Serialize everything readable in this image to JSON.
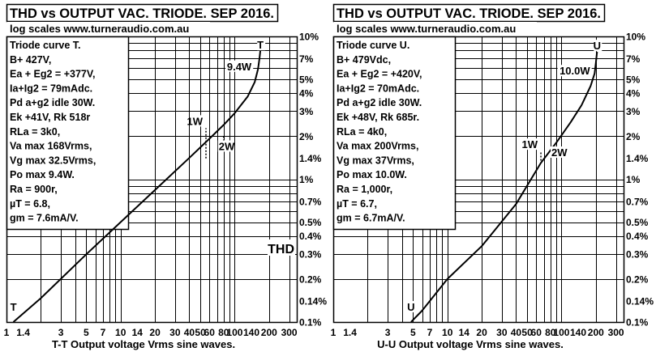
{
  "chart_data": [
    {
      "type": "line",
      "title": "THD vs OUTPUT VAC. TRIODE. SEP 2016.",
      "subtitle": "log scales  www.turneraudio.com.au",
      "xlabel": "T-T  Output voltage Vrms sine waves.",
      "ylabel_inline": "THD",
      "xscale": "log",
      "yscale": "log",
      "xlim": [
        1,
        350
      ],
      "ylim": [
        0.1,
        10
      ],
      "x_tick_labels": [
        {
          "v": 1,
          "label": "1"
        },
        {
          "v": 1.4,
          "label": "1.4"
        },
        {
          "v": 3,
          "label": "3"
        },
        {
          "v": 5,
          "label": "5"
        },
        {
          "v": 7,
          "label": "7"
        },
        {
          "v": 10,
          "label": "10"
        },
        {
          "v": 14,
          "label": "14"
        },
        {
          "v": 20,
          "label": "20"
        },
        {
          "v": 30,
          "label": "30"
        },
        {
          "v": 40,
          "label": "40"
        },
        {
          "v": 50,
          "label": "50"
        },
        {
          "v": 60,
          "label": "60"
        },
        {
          "v": 80,
          "label": "80"
        },
        {
          "v": 100,
          "label": "100"
        },
        {
          "v": 140,
          "label": "140"
        },
        {
          "v": 200,
          "label": "200"
        },
        {
          "v": 300,
          "label": "300"
        }
      ],
      "y_tick_labels": [
        {
          "v": 10,
          "label": "10%"
        },
        {
          "v": 7,
          "label": "7%"
        },
        {
          "v": 5,
          "label": "5%"
        },
        {
          "v": 4,
          "label": "4%"
        },
        {
          "v": 3,
          "label": "3%"
        },
        {
          "v": 2,
          "label": "2%"
        },
        {
          "v": 1.4,
          "label": "1.4%"
        },
        {
          "v": 1,
          "label": "1%"
        },
        {
          "v": 0.7,
          "label": "0.7%"
        },
        {
          "v": 0.5,
          "label": "0.5%"
        },
        {
          "v": 0.4,
          "label": "0.4%"
        },
        {
          "v": 0.3,
          "label": "0.3%"
        },
        {
          "v": 0.2,
          "label": "0.2%"
        },
        {
          "v": 0.14,
          "label": "0.14%"
        },
        {
          "v": 0.1,
          "label": "0.1%"
        }
      ],
      "series": [
        {
          "name": "T",
          "x": [
            1.15,
            2,
            5,
            10,
            20,
            40,
            60,
            80,
            100,
            130,
            150,
            160,
            165,
            168
          ],
          "y": [
            0.1,
            0.147,
            0.298,
            0.5,
            0.84,
            1.41,
            1.92,
            2.4,
            2.9,
            3.8,
            4.8,
            5.9,
            7.0,
            8.0
          ]
        }
      ],
      "annotations": [
        {
          "text": "1W",
          "x": 56,
          "y": 1.4,
          "label_y": 2.4
        },
        {
          "text": "2W",
          "x": 80,
          "y": 2.0,
          "label_y": 1.6
        },
        {
          "text": "9.4W",
          "x": 150,
          "y": 5.2,
          "label_y": 5.8
        },
        {
          "text": "T",
          "x": 168,
          "y": 8.0,
          "label_y": 8.2
        },
        {
          "text": "T",
          "x": 1.15,
          "y": 0.1,
          "label_y": 0.12
        }
      ],
      "info_lines": [
        "Triode curve T.",
        "B+ 427V,",
        "Ea + Eg2 = +377V,",
        "Ia+Ig2 = 79mAdc.",
        "Pd a+g2 idle 30W.",
        "Ek +41V, Rk 518r",
        "RLa = 3k0,",
        "Va max  168Vrms,",
        "Vg max 32.5Vrms,",
        "Po max  9.4W.",
        "Ra = 900r,",
        "µT = 6.8,",
        "gm = 7.6mA/V."
      ],
      "colors": {
        "line": "#000000",
        "grid": "#000000",
        "background": "#ffffff"
      }
    },
    {
      "type": "line",
      "title": "THD vs OUTPUT VAC. TRIODE. SEP 2016.",
      "subtitle": "log scales  www.turneraudio.com.au",
      "xlabel": "U-U  Output voltage Vrms sine waves.",
      "xscale": "log",
      "yscale": "log",
      "xlim": [
        1,
        350
      ],
      "ylim": [
        0.1,
        10
      ],
      "x_tick_labels": [
        {
          "v": 1,
          "label": "1"
        },
        {
          "v": 1.4,
          "label": "1.4"
        },
        {
          "v": 3,
          "label": "3"
        },
        {
          "v": 5,
          "label": "5"
        },
        {
          "v": 7,
          "label": "7"
        },
        {
          "v": 10,
          "label": "10"
        },
        {
          "v": 14,
          "label": "14"
        },
        {
          "v": 20,
          "label": "20"
        },
        {
          "v": 30,
          "label": "30"
        },
        {
          "v": 40,
          "label": "40"
        },
        {
          "v": 50,
          "label": "50"
        },
        {
          "v": 60,
          "label": "60"
        },
        {
          "v": 80,
          "label": "80"
        },
        {
          "v": 100,
          "label": "100"
        },
        {
          "v": 140,
          "label": "140"
        },
        {
          "v": 200,
          "label": "200"
        },
        {
          "v": 300,
          "label": "300"
        }
      ],
      "y_tick_labels": [
        {
          "v": 10,
          "label": "10%"
        },
        {
          "v": 7,
          "label": "7%"
        },
        {
          "v": 5,
          "label": "5%"
        },
        {
          "v": 4,
          "label": "4%"
        },
        {
          "v": 3,
          "label": "3%"
        },
        {
          "v": 2,
          "label": "2%"
        },
        {
          "v": 1.4,
          "label": "1.4%"
        },
        {
          "v": 1,
          "label": "1%"
        },
        {
          "v": 0.7,
          "label": "0.7%"
        },
        {
          "v": 0.5,
          "label": "0.5%"
        },
        {
          "v": 0.4,
          "label": "0.4%"
        },
        {
          "v": 0.3,
          "label": "0.3%"
        },
        {
          "v": 0.2,
          "label": "0.2%"
        },
        {
          "v": 0.14,
          "label": "0.14%"
        },
        {
          "v": 0.1,
          "label": "0.1%"
        }
      ],
      "series": [
        {
          "name": "U",
          "x": [
            4.8,
            6,
            10,
            20,
            40,
            66,
            90,
            120,
            150,
            180,
            195,
            200,
            205
          ],
          "y": [
            0.1,
            0.12,
            0.2,
            0.34,
            0.67,
            1.3,
            1.8,
            2.5,
            3.3,
            4.5,
            5.5,
            6.5,
            7.8
          ]
        }
      ],
      "annotations": [
        {
          "text": "1W",
          "x": 66,
          "y": 1.35,
          "label_y": 1.65
        },
        {
          "text": "2W",
          "x": 90,
          "y": 1.8,
          "label_y": 1.45
        },
        {
          "text": "10.0W",
          "x": 190,
          "y": 4.8,
          "label_y": 5.4
        },
        {
          "text": "U",
          "x": 205,
          "y": 7.8,
          "label_y": 8.1
        },
        {
          "text": "U",
          "x": 4.8,
          "y": 0.1,
          "label_y": 0.12
        }
      ],
      "info_lines": [
        "Triode curve U.",
        "B+ 479Vdc,",
        "Ea + Eg2 = +420V,",
        "Ia+Ig2 = 70mAdc.",
        "Pd a+g2 idle 30W.",
        "Ek +48V, Rk 685r.",
        "RLa = 4k0,",
        "Va max  200Vrms,",
        "Vg max  37Vrms,",
        "Po max  10.0W.",
        "Ra = 1,000r,",
        "µT = 6.7,",
        "gm = 6.7mA/V."
      ],
      "colors": {
        "line": "#000000",
        "grid": "#000000",
        "background": "#ffffff"
      }
    }
  ]
}
